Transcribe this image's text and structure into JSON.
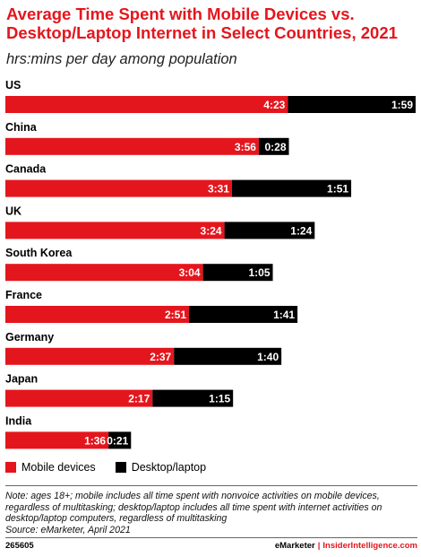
{
  "header": {
    "title": "Average Time Spent with Mobile Devices vs. Desktop/Laptop Internet in Select Countries, 2021",
    "subtitle": "hrs:mins per day among population"
  },
  "legend": {
    "mobile": "Mobile devices",
    "desktop": "Desktop/laptop"
  },
  "colors": {
    "mobile": "#e4161d",
    "desktop": "#000000",
    "title": "#e4161d"
  },
  "note": {
    "text": "Note: ages 18+; mobile includes all time spent with nonvoice activities on mobile devices, regardless of multitasking; desktop/laptop includes all time spent with internet activities on desktop/laptop computers, regardless of multitasking",
    "source": "Source: eMarketer, April 2021"
  },
  "footer": {
    "id": "265605",
    "brand_a": "eMarketer",
    "separator": "|",
    "brand_b": "InsiderIntelligence.com"
  },
  "chart_data": {
    "type": "bar",
    "orientation": "horizontal",
    "stacked": true,
    "unit": "hrs:mins",
    "categories": [
      "US",
      "China",
      "Canada",
      "UK",
      "South Korea",
      "France",
      "Germany",
      "Japan",
      "India"
    ],
    "series": [
      {
        "name": "Mobile devices",
        "values_minutes": [
          263,
          236,
          211,
          204,
          184,
          171,
          157,
          137,
          96
        ],
        "labels": [
          "4:23",
          "3:56",
          "3:31",
          "3:24",
          "3:04",
          "2:51",
          "2:37",
          "2:17",
          "1:36"
        ]
      },
      {
        "name": "Desktop/laptop",
        "values_minutes": [
          119,
          28,
          111,
          84,
          65,
          101,
          100,
          75,
          21
        ],
        "labels": [
          "1:59",
          "0:28",
          "1:51",
          "1:24",
          "1:05",
          "1:41",
          "1:40",
          "1:15",
          "0:21"
        ]
      }
    ]
  }
}
